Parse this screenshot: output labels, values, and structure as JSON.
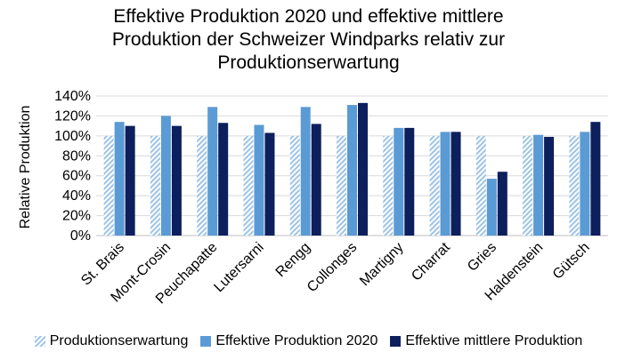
{
  "chart_data": {
    "type": "bar",
    "title_lines": [
      "Effektive Produktion 2020 und effektive mittlere",
      "Produktion der Schweizer Windparks relativ zur",
      "Produktionserwartung"
    ],
    "ylabel": "Relative Produktion",
    "xlabel": "",
    "ylim": [
      0,
      140
    ],
    "yticks": [
      "0%",
      "20%",
      "40%",
      "60%",
      "80%",
      "100%",
      "120%",
      "140%"
    ],
    "grid": true,
    "legend_position": "bottom",
    "categories": [
      "St. Brais",
      "Mont-Crosin",
      "Peuchapatte",
      "Lutersarni",
      "Rengg",
      "Collonges",
      "Martigny",
      "Charrat",
      "Gries",
      "Haldenstein",
      "Gütsch"
    ],
    "series": [
      {
        "name": "Produktionserwartung",
        "color": "#9dc3e6",
        "pattern": "hatch",
        "values": [
          100,
          100,
          100,
          100,
          100,
          100,
          100,
          100,
          100,
          100,
          100
        ]
      },
      {
        "name": "Effektive Produktion 2020",
        "color": "#5b9bd5",
        "values": [
          114,
          120,
          129,
          111,
          129,
          131,
          108,
          104,
          57,
          101,
          104
        ]
      },
      {
        "name": "Effektive mittlere Produktion",
        "color": "#0d1f5c",
        "values": [
          110,
          110,
          113,
          103,
          112,
          133,
          108,
          104,
          64,
          99,
          114
        ]
      }
    ]
  }
}
